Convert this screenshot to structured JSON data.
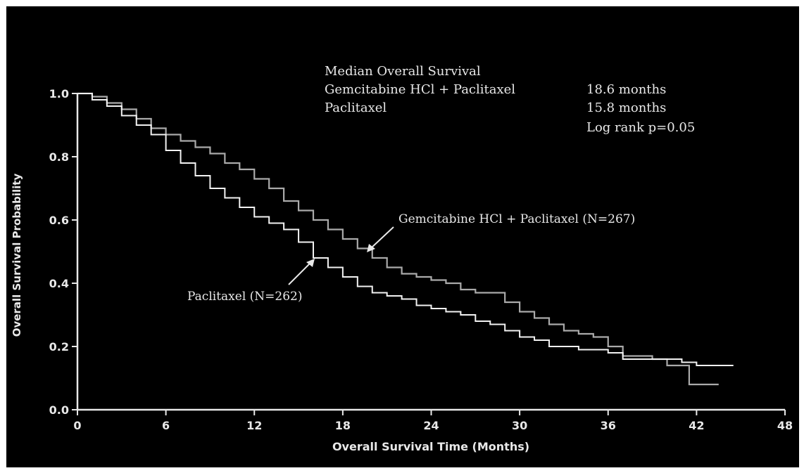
{
  "colors": {
    "background": "#000000",
    "outer_background": "#ffffff",
    "ink": "#e8e8e8",
    "gemcitabine_line": "#aaaaaa",
    "paclitaxel_line": "#f2f2f2"
  },
  "annotations": {
    "title": "Median Overall Survival",
    "arm1_label": "Gemcitabine HCl + Paclitaxel",
    "arm2_label": "Paclitaxel",
    "arm1_value": "18.6 months",
    "arm2_value": "15.8 months",
    "log_rank": "Log rank p=0.05",
    "gem_curve_label": "Gemcitabine HCl + Paclitaxel (N=267)",
    "pac_curve_label": "Paclitaxel (N=262)"
  },
  "chart_data": {
    "type": "line",
    "title": "",
    "xlabel": "Overall Survival Time (Months)",
    "ylabel": "Overall Survival Probability",
    "xlim": [
      0,
      48
    ],
    "ylim": [
      0,
      1.0
    ],
    "x_ticks": [
      0,
      6,
      12,
      18,
      24,
      30,
      36,
      42,
      48
    ],
    "y_ticks": [
      0.0,
      0.2,
      0.4,
      0.6,
      0.8,
      1.0
    ],
    "y_tick_labels": [
      "0.0",
      "0.2",
      "0.4",
      "0.6",
      "0.8",
      "1.0"
    ],
    "grid": false,
    "series": [
      {
        "name": "Gemcitabine HCl + Paclitaxel (N=267)",
        "color": "#aaaaaa",
        "points": [
          [
            0,
            1.0
          ],
          [
            1,
            0.99
          ],
          [
            2,
            0.97
          ],
          [
            3,
            0.95
          ],
          [
            4,
            0.92
          ],
          [
            5,
            0.89
          ],
          [
            6,
            0.87
          ],
          [
            7,
            0.85
          ],
          [
            8,
            0.83
          ],
          [
            9,
            0.81
          ],
          [
            10,
            0.78
          ],
          [
            11,
            0.76
          ],
          [
            12,
            0.73
          ],
          [
            13,
            0.7
          ],
          [
            14,
            0.66
          ],
          [
            15,
            0.63
          ],
          [
            16,
            0.6
          ],
          [
            17,
            0.57
          ],
          [
            18,
            0.54
          ],
          [
            19,
            0.51
          ],
          [
            20,
            0.48
          ],
          [
            21,
            0.45
          ],
          [
            22,
            0.43
          ],
          [
            23,
            0.42
          ],
          [
            24,
            0.41
          ],
          [
            25,
            0.4
          ],
          [
            26,
            0.38
          ],
          [
            27,
            0.37
          ],
          [
            28,
            0.37
          ],
          [
            29,
            0.34
          ],
          [
            30,
            0.31
          ],
          [
            31,
            0.29
          ],
          [
            32,
            0.27
          ],
          [
            33,
            0.25
          ],
          [
            34,
            0.24
          ],
          [
            35,
            0.23
          ],
          [
            36,
            0.2
          ],
          [
            37,
            0.17
          ],
          [
            38,
            0.17
          ],
          [
            39,
            0.16
          ],
          [
            40,
            0.14
          ],
          [
            41.5,
            0.14
          ],
          [
            41.5,
            0.08
          ],
          [
            43.5,
            0.08
          ]
        ]
      },
      {
        "name": "Paclitaxel (N=262)",
        "color": "#f2f2f2",
        "points": [
          [
            0,
            1.0
          ],
          [
            1,
            0.98
          ],
          [
            2,
            0.96
          ],
          [
            3,
            0.93
          ],
          [
            4,
            0.9
          ],
          [
            5,
            0.87
          ],
          [
            6,
            0.82
          ],
          [
            7,
            0.78
          ],
          [
            8,
            0.74
          ],
          [
            9,
            0.7
          ],
          [
            10,
            0.67
          ],
          [
            11,
            0.64
          ],
          [
            12,
            0.61
          ],
          [
            13,
            0.59
          ],
          [
            14,
            0.57
          ],
          [
            15,
            0.53
          ],
          [
            16,
            0.48
          ],
          [
            17,
            0.45
          ],
          [
            18,
            0.42
          ],
          [
            19,
            0.39
          ],
          [
            20,
            0.37
          ],
          [
            21,
            0.36
          ],
          [
            22,
            0.35
          ],
          [
            23,
            0.33
          ],
          [
            24,
            0.32
          ],
          [
            25,
            0.31
          ],
          [
            26,
            0.3
          ],
          [
            27,
            0.28
          ],
          [
            28,
            0.27
          ],
          [
            29,
            0.25
          ],
          [
            30,
            0.23
          ],
          [
            31,
            0.22
          ],
          [
            32,
            0.2
          ],
          [
            33,
            0.2
          ],
          [
            34,
            0.19
          ],
          [
            35,
            0.19
          ],
          [
            36,
            0.18
          ],
          [
            37,
            0.16
          ],
          [
            38,
            0.16
          ],
          [
            39,
            0.16
          ],
          [
            40,
            0.16
          ],
          [
            41,
            0.15
          ],
          [
            42,
            0.14
          ],
          [
            44.5,
            0.14
          ]
        ]
      }
    ]
  }
}
